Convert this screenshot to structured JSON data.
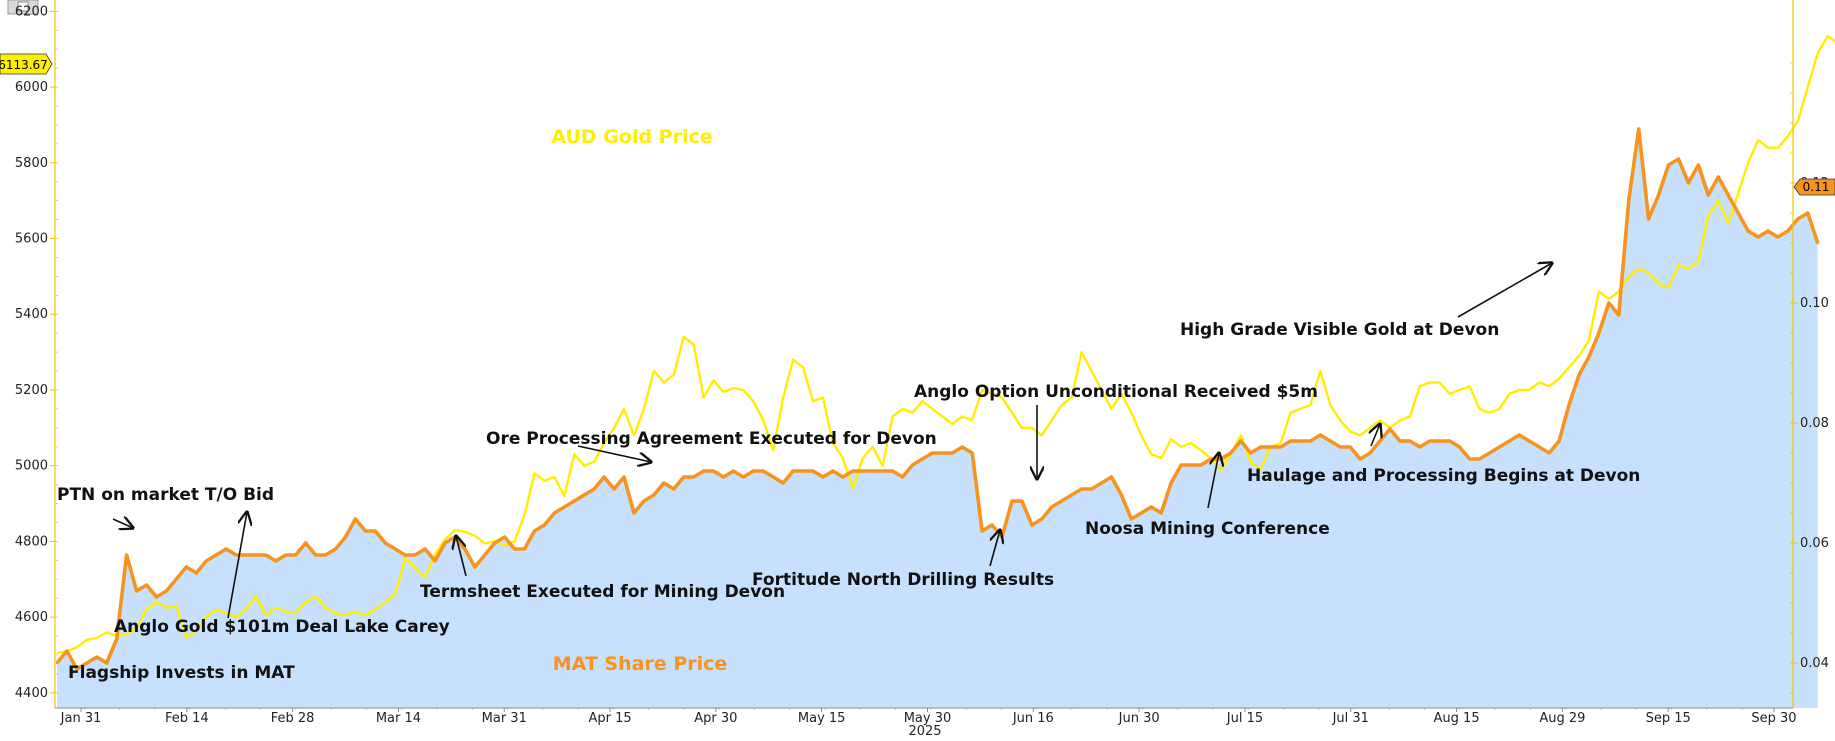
{
  "chart_data": {
    "type": "line",
    "title": "",
    "x_year_label": "2025",
    "x_tick_labels": [
      "Jan 31",
      "Feb 14",
      "Feb 28",
      "Mar 14",
      "Mar 31",
      "Apr 15",
      "Apr 30",
      "May 15",
      "May 30",
      "Jun 16",
      "Jun 30",
      "Jul 15",
      "Jul 31",
      "Aug 15",
      "Aug 29",
      "Sep 15",
      "Sep 30"
    ],
    "left_axis": {
      "ylim": [
        4360,
        6230
      ],
      "ticks": [
        "4400",
        "4600",
        "4800",
        "5000",
        "5200",
        "5400",
        "5600",
        "5800",
        "6000",
        "6200"
      ]
    },
    "right_axis": {
      "ylim": [
        0.0325,
        0.1505
      ],
      "ticks": [
        "0.04",
        "0.06",
        "0.08",
        "0.10",
        "0.12"
      ]
    },
    "x_index_range": [
      0,
      172
    ],
    "series": [
      {
        "name": "AUD Gold Price",
        "axis": "left",
        "color": "#ffee00",
        "values": [
          4505,
          4510,
          4520,
          4540,
          4545,
          4560,
          4550,
          4555,
          4570,
          4620,
          4640,
          4625,
          4630,
          4545,
          4565,
          4600,
          4620,
          4610,
          4600,
          4620,
          4655,
          4605,
          4625,
          4615,
          4610,
          4640,
          4655,
          4625,
          4610,
          4605,
          4615,
          4605,
          4620,
          4640,
          4660,
          4755,
          4730,
          4705,
          4765,
          4805,
          4830,
          4825,
          4815,
          4795,
          4800,
          4790,
          4800,
          4870,
          4980,
          4960,
          4970,
          4920,
          5030,
          5000,
          5010,
          5060,
          5100,
          5150,
          5080,
          5150,
          5250,
          5220,
          5240,
          5340,
          5320,
          5180,
          5225,
          5195,
          5205,
          5200,
          5170,
          5120,
          5040,
          5180,
          5280,
          5260,
          5170,
          5180,
          5060,
          5020,
          4940,
          5020,
          5050,
          5000,
          5130,
          5150,
          5140,
          5170,
          5150,
          5130,
          5110,
          5130,
          5120,
          5200,
          5190,
          5180,
          5140,
          5100,
          5100,
          5080,
          5120,
          5160,
          5180,
          5300,
          5250,
          5200,
          5150,
          5190,
          5140,
          5080,
          5030,
          5020,
          5070,
          5050,
          5060,
          5040,
          5020,
          4990,
          5030,
          5080,
          5010,
          4990,
          5050,
          5060,
          5140,
          5150,
          5160,
          5250,
          5160,
          5120,
          5090,
          5080,
          5100,
          5120,
          5100,
          5120,
          5130,
          5210,
          5220,
          5220,
          5190,
          5200,
          5210,
          5150,
          5140,
          5150,
          5190,
          5200,
          5200,
          5220,
          5210,
          5230,
          5260,
          5290,
          5330,
          5460,
          5440,
          5460,
          5500,
          5520,
          5510,
          5480,
          5470,
          5530,
          5520,
          5540,
          5660,
          5700,
          5640,
          5720,
          5800,
          5860,
          5840,
          5840,
          5870,
          5910,
          6000,
          6090,
          6135,
          6115
        ]
      },
      {
        "name": "MAT Share Price",
        "axis": "right",
        "color": "#f7931e",
        "fill_color": "#c7e0fb",
        "values": [
          0.04,
          0.042,
          0.039,
          0.04,
          0.041,
          0.04,
          0.044,
          0.058,
          0.052,
          0.053,
          0.051,
          0.052,
          0.054,
          0.056,
          0.055,
          0.057,
          0.058,
          0.059,
          0.058,
          0.058,
          0.058,
          0.058,
          0.057,
          0.058,
          0.058,
          0.06,
          0.058,
          0.058,
          0.059,
          0.061,
          0.064,
          0.062,
          0.062,
          0.06,
          0.059,
          0.058,
          0.058,
          0.059,
          0.057,
          0.06,
          0.061,
          0.059,
          0.056,
          0.058,
          0.06,
          0.061,
          0.059,
          0.059,
          0.062,
          0.063,
          0.065,
          0.066,
          0.067,
          0.068,
          0.069,
          0.071,
          0.069,
          0.071,
          0.065,
          0.067,
          0.068,
          0.07,
          0.069,
          0.071,
          0.071,
          0.072,
          0.072,
          0.071,
          0.072,
          0.071,
          0.072,
          0.072,
          0.071,
          0.07,
          0.072,
          0.072,
          0.072,
          0.071,
          0.072,
          0.071,
          0.072,
          0.072,
          0.072,
          0.072,
          0.072,
          0.071,
          0.073,
          0.074,
          0.075,
          0.075,
          0.075,
          0.076,
          0.075,
          0.062,
          0.063,
          0.061,
          0.067,
          0.067,
          0.063,
          0.064,
          0.066,
          0.067,
          0.068,
          0.069,
          0.069,
          0.07,
          0.071,
          0.068,
          0.064,
          0.065,
          0.066,
          0.065,
          0.07,
          0.073,
          0.073,
          0.073,
          0.074,
          0.074,
          0.075,
          0.077,
          0.075,
          0.076,
          0.076,
          0.076,
          0.077,
          0.077,
          0.077,
          0.078,
          0.077,
          0.076,
          0.076,
          0.074,
          0.075,
          0.077,
          0.079,
          0.077,
          0.077,
          0.076,
          0.077,
          0.077,
          0.077,
          0.076,
          0.074,
          0.074,
          0.075,
          0.076,
          0.077,
          0.078,
          0.077,
          0.076,
          0.075,
          0.077,
          0.083,
          0.088,
          0.091,
          0.095,
          0.1,
          0.098,
          0.117,
          0.129,
          0.114,
          0.118,
          0.123,
          0.124,
          0.12,
          0.123,
          0.118,
          0.121,
          0.118,
          0.115,
          0.112,
          0.111,
          0.112,
          0.111,
          0.112,
          0.114,
          0.115,
          0.11
        ]
      }
    ],
    "series_labels": [
      {
        "text": "AUD Gold Price",
        "color": "#ffee00"
      },
      {
        "text": "MAT Share Price",
        "color": "#f7931e"
      }
    ],
    "last_value_badges": [
      {
        "text": "6113.67",
        "axis": "left",
        "color": "#ffee00"
      },
      {
        "text": "0.11",
        "axis": "right",
        "color": "#f7931e"
      }
    ],
    "annotations": [
      {
        "text": "PTN on market T/O Bid",
        "target_index": 7
      },
      {
        "text": "Anglo Gold $101m Deal Lake Carey",
        "target_index": 20
      },
      {
        "text": "Flagship Invests in MAT",
        "target_index": null
      },
      {
        "text": "Termsheet Executed for Mining Devon",
        "target_index": 40
      },
      {
        "text": "Ore Processing Agreement Executed for Devon",
        "target_index": 60
      },
      {
        "text": "Fortitude North Drilling Results",
        "target_index": 94
      },
      {
        "text": "Anglo Option Unconditional Received $5m",
        "target_index": 97
      },
      {
        "text": "Noosa Mining Conference",
        "target_index": 115
      },
      {
        "text": "Haulage and Processing Begins at Devon",
        "target_index": 131
      },
      {
        "text": "High Grade Visible Gold at Devon",
        "target_index": 152
      }
    ],
    "grid": false,
    "legend": "none"
  }
}
